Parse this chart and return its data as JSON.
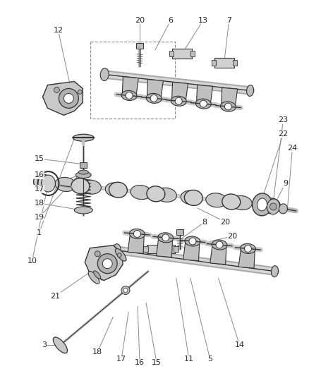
{
  "bg_color": "#ffffff",
  "line_color": "#444444",
  "dark_line": "#333333",
  "text_color": "#222222",
  "gray_fill": "#c8c8c8",
  "gray_mid": "#b0b0b0",
  "gray_dark": "#888888",
  "gray_light": "#dddddd",
  "fig_w": 4.38,
  "fig_h": 5.33,
  "dpi": 100
}
